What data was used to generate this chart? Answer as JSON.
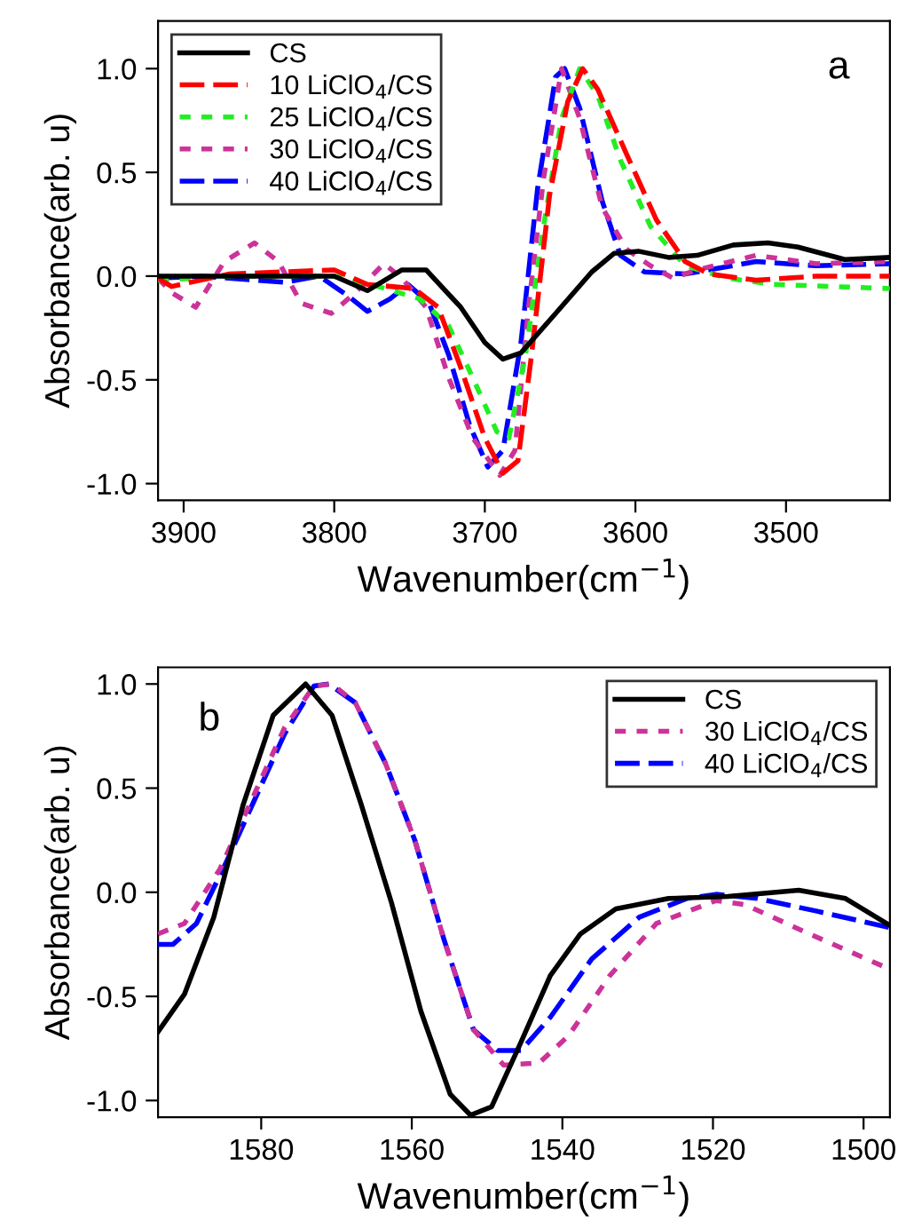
{
  "chart_data": [
    {
      "type": "line",
      "xlabel": "Wavenumber(cm$^{−1}$)",
      "ylabel": "Absorbance(arb. u)",
      "annotations": [
        "a"
      ],
      "legend": "top left",
      "grid": false,
      "xlim": [
        3917,
        3431
      ],
      "xticks": [
        3900,
        3800,
        3700,
        3600,
        3500
      ],
      "ylim": [
        -1.08,
        1.23
      ],
      "yticks": [
        {
          "value": -1,
          "label": "-1.0"
        },
        {
          "value": -0.5,
          "label": "-0.5"
        },
        {
          "value": 0,
          "label": "0.0"
        },
        {
          "value": 0.5,
          "label": "0.5"
        },
        {
          "value": 1,
          "label": "1.0"
        }
      ],
      "series": [
        {
          "name": "CS",
          "color": "#000000",
          "line_style": "solid",
          "x": [
            3917,
            3860,
            3800,
            3778,
            3755,
            3739,
            3716,
            3700,
            3688,
            3676,
            3653,
            3629,
            3614,
            3598,
            3578,
            3559,
            3535,
            3512,
            3492,
            3461,
            3431
          ],
          "values": [
            0,
            0,
            0,
            -0.07,
            0.03,
            0.03,
            -0.15,
            -0.32,
            -0.4,
            -0.37,
            -0.18,
            0.02,
            0.11,
            0.12,
            0.09,
            0.1,
            0.15,
            0.16,
            0.14,
            0.08,
            0.09
          ]
        },
        {
          "name": "10 LiClO$_{4}$/CS",
          "color": "#ff0000",
          "line_style": "dashed",
          "x": [
            3917,
            3908,
            3870,
            3800,
            3778,
            3747,
            3731,
            3716,
            3700,
            3688,
            3678,
            3669,
            3657,
            3645,
            3635,
            3625,
            3606,
            3586,
            3567,
            3551,
            3520,
            3480,
            3431
          ],
          "values": [
            -0.01,
            -0.05,
            0.01,
            0.03,
            -0.04,
            -0.06,
            -0.15,
            -0.44,
            -0.78,
            -0.95,
            -0.89,
            -0.38,
            0.39,
            0.84,
            1.0,
            0.9,
            0.59,
            0.27,
            0.07,
            0.01,
            -0.02,
            0,
            0
          ]
        },
        {
          "name": "25 LiClO$_{4}$/CS",
          "color": "#22ee22",
          "line_style": "dotted",
          "x": [
            3917,
            3870,
            3800,
            3771,
            3743,
            3724,
            3708,
            3692,
            3684,
            3673,
            3661,
            3649,
            3637,
            3625,
            3610,
            3590,
            3567,
            3539,
            3508,
            3431
          ],
          "values": [
            -0.02,
            0,
            0,
            -0.05,
            -0.11,
            -0.24,
            -0.49,
            -0.75,
            -0.78,
            -0.38,
            0.24,
            0.76,
            1.0,
            0.87,
            0.56,
            0.24,
            0.05,
            -0.01,
            -0.04,
            -0.06
          ]
        },
        {
          "name": "30 LiClO$_{4}$/CS",
          "color": "#cc3399",
          "line_style": "dotted",
          "x": [
            3917,
            3908,
            3892,
            3873,
            3853,
            3837,
            3822,
            3802,
            3786,
            3767,
            3755,
            3739,
            3724,
            3708,
            3690,
            3680,
            3671,
            3661,
            3649,
            3637,
            3622,
            3606,
            3590,
            3575,
            3559,
            3520,
            3480,
            3431
          ],
          "values": [
            -0.01,
            -0.08,
            -0.15,
            0.07,
            0.16,
            0.07,
            -0.13,
            -0.18,
            -0.08,
            0.06,
            -0.01,
            -0.15,
            -0.49,
            -0.78,
            -0.96,
            -0.84,
            -0.15,
            0.47,
            1.0,
            0.76,
            0.33,
            0.13,
            0.05,
            -0.01,
            0.03,
            0.1,
            0.06,
            0.07
          ]
        },
        {
          "name": "40 LiClO$_{4}$/CS",
          "color": "#0000ff",
          "line_style": "dashed",
          "x": [
            3917,
            3888,
            3833,
            3810,
            3790,
            3778,
            3763,
            3751,
            3737,
            3724,
            3710,
            3698,
            3688,
            3676,
            3665,
            3653,
            3647,
            3637,
            3622,
            3610,
            3594,
            3567,
            3520,
            3480,
            3431
          ],
          "values": [
            -0.01,
            0,
            -0.03,
            0,
            -0.1,
            -0.17,
            -0.11,
            -0.04,
            -0.13,
            -0.38,
            -0.72,
            -0.92,
            -0.84,
            -0.32,
            0.42,
            0.96,
            1.0,
            0.81,
            0.36,
            0.1,
            0.02,
            0.01,
            0.07,
            0.05,
            0.06
          ]
        }
      ]
    },
    {
      "type": "line",
      "xlabel": "Wavenumber(cm$^{−1}$)",
      "ylabel": "Absorbance(arb. u)",
      "annotations": [
        "b"
      ],
      "legend": "top right",
      "grid": false,
      "xlim": [
        1593.7,
        1496.5
      ],
      "xticks": [
        1580,
        1560,
        1540,
        1520,
        1500
      ],
      "ylim": [
        -1.08,
        1.08
      ],
      "yticks": [
        {
          "value": -1,
          "label": "-1.0"
        },
        {
          "value": -0.5,
          "label": "-0.5"
        },
        {
          "value": 0,
          "label": "0.0"
        },
        {
          "value": 0.5,
          "label": "0.5"
        },
        {
          "value": 1,
          "label": "1.0"
        }
      ],
      "series": [
        {
          "name": "CS",
          "color": "#000000",
          "line_style": "solid",
          "x": [
            1593.7,
            1590.2,
            1586.3,
            1582.4,
            1578.4,
            1574.1,
            1570.6,
            1566.7,
            1562.7,
            1558.8,
            1554.9,
            1552.2,
            1549.4,
            1545.5,
            1541.6,
            1537.6,
            1532.9,
            1525.9,
            1518,
            1508.6,
            1502.4,
            1496.5
          ],
          "values": [
            -0.67,
            -0.49,
            -0.12,
            0.42,
            0.85,
            1.0,
            0.85,
            0.42,
            -0.05,
            -0.57,
            -0.97,
            -1.07,
            -1.03,
            -0.72,
            -0.4,
            -0.2,
            -0.08,
            -0.03,
            -0.02,
            0.01,
            -0.03,
            -0.16
          ]
        },
        {
          "name": "30 LiClO$_{4}$/CS",
          "color": "#cc3399",
          "line_style": "dotted",
          "x": [
            1593.7,
            1590.2,
            1585.5,
            1580.8,
            1576.9,
            1573,
            1570.6,
            1567.5,
            1563.5,
            1559.6,
            1555.7,
            1551.8,
            1547.8,
            1543.1,
            1539.2,
            1533.7,
            1527.5,
            1519.6,
            1515.7,
            1507.8,
            1496.5
          ],
          "values": [
            -0.2,
            -0.15,
            0.11,
            0.48,
            0.79,
            0.99,
            1.0,
            0.91,
            0.62,
            0.25,
            -0.23,
            -0.66,
            -0.83,
            -0.82,
            -0.69,
            -0.4,
            -0.15,
            -0.04,
            -0.06,
            -0.19,
            -0.37
          ]
        },
        {
          "name": "40 LiClO$_{4}$/CS",
          "color": "#0000ff",
          "line_style": "dashed",
          "x": [
            1593.7,
            1591.7,
            1588.6,
            1584.7,
            1580.8,
            1576.9,
            1573,
            1571,
            1567.5,
            1563.5,
            1559.6,
            1555.7,
            1551.8,
            1548.6,
            1545.5,
            1541.6,
            1536.1,
            1529.8,
            1523.5,
            1519.6,
            1514.1,
            1506.3,
            1496.5
          ],
          "values": [
            -0.25,
            -0.25,
            -0.15,
            0.14,
            0.45,
            0.76,
            0.99,
            1.0,
            0.91,
            0.62,
            0.25,
            -0.23,
            -0.66,
            -0.76,
            -0.76,
            -0.6,
            -0.32,
            -0.12,
            -0.03,
            -0.01,
            -0.03,
            -0.09,
            -0.17
          ]
        }
      ]
    }
  ]
}
